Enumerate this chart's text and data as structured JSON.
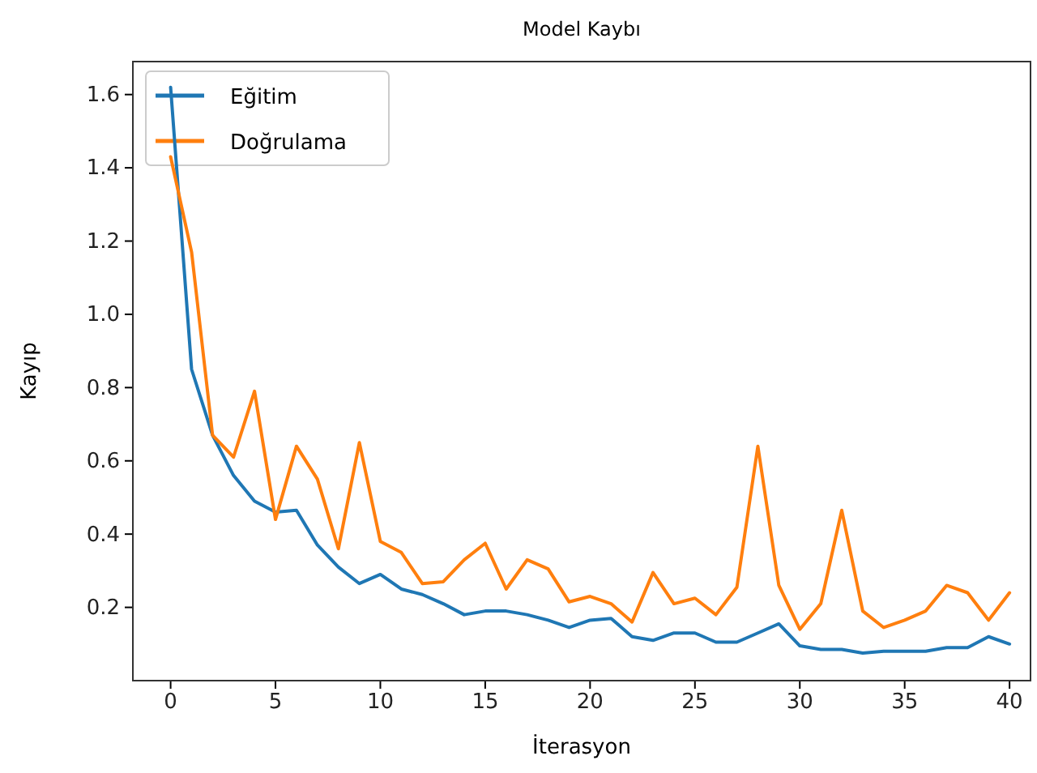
{
  "chart_data": {
    "type": "line",
    "title": "Model Kaybı",
    "xlabel": "İterasyon",
    "ylabel": "Kayıp",
    "x": [
      0,
      1,
      2,
      3,
      4,
      5,
      6,
      7,
      8,
      9,
      10,
      11,
      12,
      13,
      14,
      15,
      16,
      17,
      18,
      19,
      20,
      21,
      22,
      23,
      24,
      25,
      26,
      27,
      28,
      29,
      30,
      31,
      32,
      33,
      34,
      35,
      36,
      37,
      38,
      39,
      40
    ],
    "series": [
      {
        "name": "Eğitim",
        "color": "#1f77b4",
        "values": [
          1.62,
          0.85,
          0.67,
          0.56,
          0.49,
          0.46,
          0.465,
          0.37,
          0.31,
          0.265,
          0.29,
          0.25,
          0.235,
          0.21,
          0.18,
          0.19,
          0.19,
          0.18,
          0.165,
          0.145,
          0.165,
          0.17,
          0.12,
          0.11,
          0.13,
          0.13,
          0.105,
          0.105,
          0.13,
          0.155,
          0.095,
          0.085,
          0.085,
          0.075,
          0.08,
          0.08,
          0.08,
          0.09,
          0.09,
          0.12,
          0.1
        ]
      },
      {
        "name": "Doğrulama",
        "color": "#ff7f0e",
        "values": [
          1.43,
          1.17,
          0.67,
          0.61,
          0.79,
          0.44,
          0.64,
          0.55,
          0.36,
          0.65,
          0.38,
          0.35,
          0.265,
          0.27,
          0.33,
          0.375,
          0.25,
          0.33,
          0.305,
          0.215,
          0.23,
          0.21,
          0.16,
          0.295,
          0.21,
          0.225,
          0.18,
          0.255,
          0.64,
          0.26,
          0.14,
          0.21,
          0.465,
          0.19,
          0.145,
          0.165,
          0.19,
          0.26,
          0.24,
          0.165,
          0.24
        ]
      }
    ],
    "xlim": [
      -1.8,
      41
    ],
    "ylim": [
      0,
      1.69
    ],
    "xticks": [
      0,
      5,
      10,
      15,
      20,
      25,
      30,
      35,
      40
    ],
    "yticks": [
      {
        "value": 0.2,
        "label": "0.2"
      },
      {
        "value": 0.4,
        "label": "0.4"
      },
      {
        "value": 0.6,
        "label": "0.6"
      },
      {
        "value": 0.8,
        "label": "0.8"
      },
      {
        "value": 1.0,
        "label": "1.0"
      },
      {
        "value": 1.2,
        "label": "1.2"
      },
      {
        "value": 1.4,
        "label": "1.4"
      },
      {
        "value": 1.6,
        "label": "1.6"
      }
    ],
    "legend": "top left",
    "grid": false,
    "marker": "none",
    "line_style": "solid"
  }
}
